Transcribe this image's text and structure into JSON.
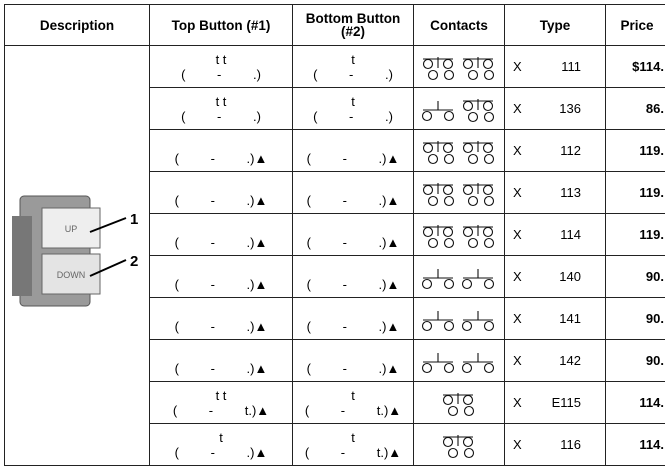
{
  "table": {
    "headers": [
      "Description",
      "Top Button (#1)",
      "Bottom Button (#2)",
      "Contacts",
      "Type",
      "Price"
    ],
    "rows": [
      {
        "top": [
          "t t",
          "( - .)"
        ],
        "bottom": [
          "t",
          "( - .)"
        ],
        "type": [
          "X",
          "111"
        ],
        "price": "$114."
      },
      {
        "top": [
          "t t",
          "( - .)"
        ],
        "bottom": [
          "t",
          "( - .)"
        ],
        "type": [
          "X",
          "136"
        ],
        "price": "86."
      },
      {
        "top": [
          "",
          "( - .)▲"
        ],
        "bottom": [
          "",
          "( - .)▲"
        ],
        "type": [
          "X",
          "112"
        ],
        "price": "119."
      },
      {
        "top": [
          "",
          "( - .)▲"
        ],
        "bottom": [
          "",
          "( - .)▲"
        ],
        "type": [
          "X",
          "113"
        ],
        "price": "119."
      },
      {
        "top": [
          "",
          "( - .)▲"
        ],
        "bottom": [
          "",
          "( - .)▲"
        ],
        "type": [
          "X",
          "114"
        ],
        "price": "119."
      },
      {
        "top": [
          "",
          "( - .)▲"
        ],
        "bottom": [
          "",
          "( - .)▲"
        ],
        "type": [
          "X",
          "140"
        ],
        "price": "90."
      },
      {
        "top": [
          "",
          "( - .)▲"
        ],
        "bottom": [
          "",
          "( - .)▲"
        ],
        "type": [
          "X",
          "141"
        ],
        "price": "90."
      },
      {
        "top": [
          "",
          "( - .)▲"
        ],
        "bottom": [
          "",
          "( - .)▲"
        ],
        "type": [
          "X",
          "142"
        ],
        "price": "90."
      },
      {
        "top": [
          "t t",
          "( - t.)▲"
        ],
        "bottom": [
          "t",
          "( - t.)▲"
        ],
        "type": [
          "X",
          "E115"
        ],
        "price": "114."
      },
      {
        "top": [
          "t",
          "( - .)▲"
        ],
        "bottom": [
          "t",
          "( - t.)▲"
        ],
        "type": [
          "X",
          "116"
        ],
        "price": "114."
      }
    ]
  },
  "image": {
    "labels": [
      "UP",
      "DOWN"
    ],
    "callouts": [
      "1",
      "2"
    ]
  }
}
